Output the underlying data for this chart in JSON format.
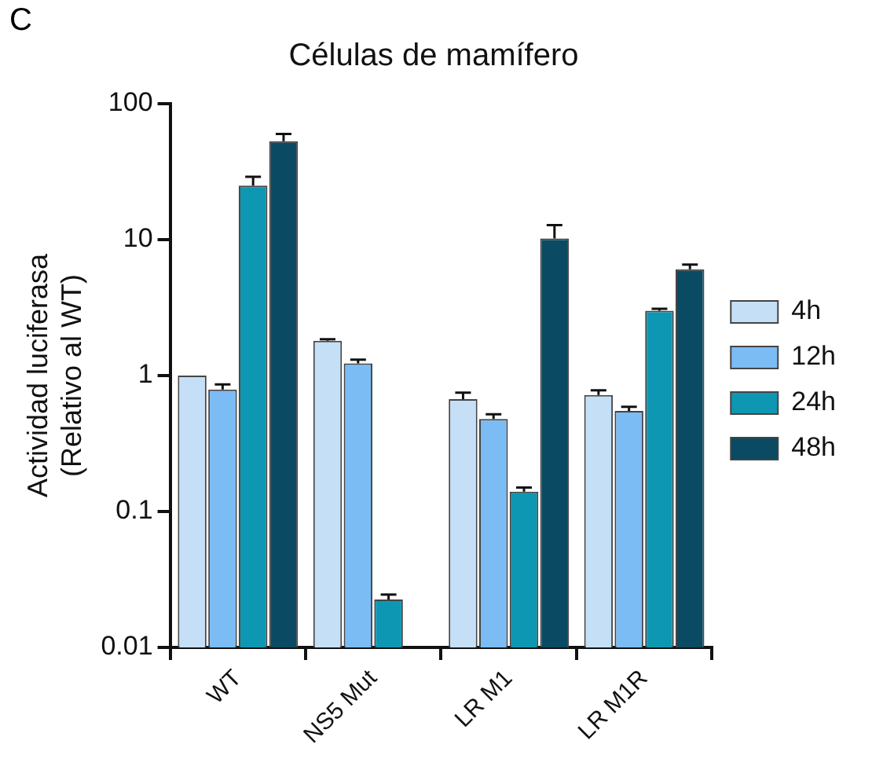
{
  "chart_data": {
    "type": "bar",
    "title": "Células de mamífero",
    "ylabel": "Actividad luciferasa\n(Relativo al WT)",
    "annotations": [
      "C"
    ],
    "categories": [
      "WT",
      "NS5 Mut",
      "LR M1",
      "LR M1R"
    ],
    "series": [
      {
        "name": "4h",
        "color": "#c5dff7",
        "values": [
          1.0,
          1.8,
          0.67,
          0.72
        ],
        "errors": [
          null,
          0.05,
          0.08,
          0.06
        ]
      },
      {
        "name": "12h",
        "color": "#7bbcf5",
        "values": [
          0.79,
          1.23,
          0.48,
          0.55
        ],
        "errors": [
          0.07,
          0.08,
          0.04,
          0.04
        ]
      },
      {
        "name": "24h",
        "color": "#0e97b2",
        "values": [
          25,
          0.0225,
          0.14,
          3.0
        ],
        "errors": [
          4,
          0.002,
          0.01,
          0.1
        ]
      },
      {
        "name": "48h",
        "color": "#0a4a62",
        "values": [
          53,
          null,
          10.2,
          6.05
        ],
        "errors": [
          7,
          null,
          2.6,
          0.5
        ]
      }
    ],
    "log": true,
    "ylim": [
      0.01,
      100
    ],
    "yticks": [
      0.01,
      0.1,
      1,
      10,
      100
    ],
    "grid": false,
    "legend": "right"
  }
}
